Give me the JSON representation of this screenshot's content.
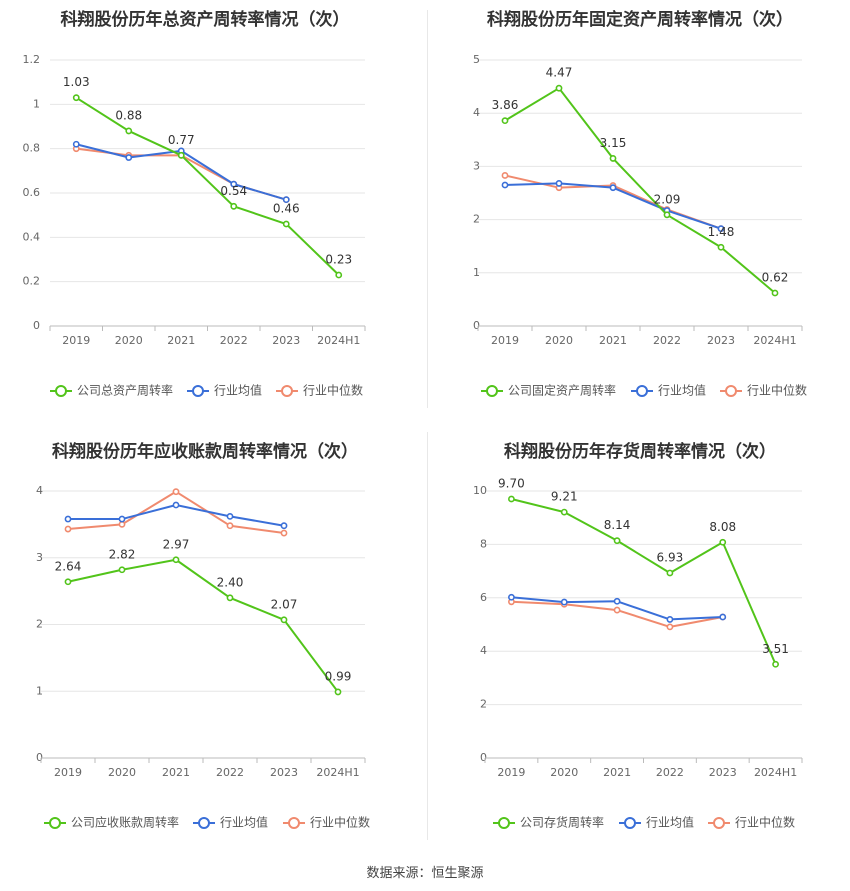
{
  "source_text": "数据来源：恒生聚源",
  "colors": {
    "company": "#52c41a",
    "average": "#3a6fd8",
    "median": "#f08a6e",
    "grid": "#e6e6e6",
    "axis": "#bbbbbb",
    "tick_text": "#666666",
    "label_text": "#333333",
    "title_text": "#333333"
  },
  "chart_data": [
    {
      "type": "line",
      "title": "科翔股份历年总资产周转率情况（次）",
      "categories": [
        "2019",
        "2020",
        "2021",
        "2022",
        "2023",
        "2024H1"
      ],
      "ylim": [
        0,
        1.2
      ],
      "yticks": [
        "0",
        "0.2",
        "0.4",
        "0.6",
        "0.8",
        "1",
        "1.2"
      ],
      "ytick_values": [
        0,
        0.2,
        0.4,
        0.6,
        0.8,
        1.0,
        1.2
      ],
      "series": [
        {
          "name": "公司总资产周转率",
          "role": "company",
          "values": [
            1.03,
            0.88,
            0.77,
            0.54,
            0.46,
            0.23
          ],
          "labels": [
            "1.03",
            "0.88",
            "0.77",
            "0.54",
            "0.46",
            "0.23"
          ]
        },
        {
          "name": "行业均值",
          "role": "average",
          "values": [
            0.82,
            0.76,
            0.79,
            0.64,
            0.57,
            null
          ]
        },
        {
          "name": "行业中位数",
          "role": "median",
          "values": [
            0.8,
            0.77,
            0.77,
            0.64,
            0.57,
            null
          ]
        }
      ]
    },
    {
      "type": "line",
      "title": "科翔股份历年固定资产周转率情况（次）",
      "categories": [
        "2019",
        "2020",
        "2021",
        "2022",
        "2023",
        "2024H1"
      ],
      "ylim": [
        0,
        5
      ],
      "yticks": [
        "0",
        "1",
        "2",
        "3",
        "4",
        "5"
      ],
      "ytick_values": [
        0,
        1,
        2,
        3,
        4,
        5
      ],
      "series": [
        {
          "name": "公司固定资产周转率",
          "role": "company",
          "values": [
            3.86,
            4.47,
            3.15,
            2.09,
            1.48,
            0.62
          ],
          "labels": [
            "3.86",
            "4.47",
            "3.15",
            "2.09",
            "1.48",
            "0.62"
          ]
        },
        {
          "name": "行业均值",
          "role": "average",
          "values": [
            2.65,
            2.68,
            2.6,
            2.17,
            1.83,
            null
          ]
        },
        {
          "name": "行业中位数",
          "role": "median",
          "values": [
            2.83,
            2.6,
            2.64,
            2.19,
            1.83,
            null
          ]
        }
      ]
    },
    {
      "type": "line",
      "title": "科翔股份历年应收账款周转率情况（次）",
      "categories": [
        "2019",
        "2020",
        "2021",
        "2022",
        "2023",
        "2024H1"
      ],
      "ylim": [
        0,
        4
      ],
      "yticks": [
        "0",
        "1",
        "2",
        "3",
        "4"
      ],
      "ytick_values": [
        0,
        1,
        2,
        3,
        4
      ],
      "series": [
        {
          "name": "公司应收账款周转率",
          "role": "company",
          "values": [
            2.64,
            2.82,
            2.97,
            2.4,
            2.07,
            0.99
          ],
          "labels": [
            "2.64",
            "2.82",
            "2.97",
            "2.40",
            "2.07",
            "0.99"
          ]
        },
        {
          "name": "行业均值",
          "role": "average",
          "values": [
            3.58,
            3.58,
            3.79,
            3.62,
            3.48,
            null
          ]
        },
        {
          "name": "行业中位数",
          "role": "median",
          "values": [
            3.43,
            3.5,
            3.99,
            3.48,
            3.37,
            null
          ]
        }
      ]
    },
    {
      "type": "line",
      "title": "科翔股份历年存货周转率情况（次）",
      "categories": [
        "2019",
        "2020",
        "2021",
        "2022",
        "2023",
        "2024H1"
      ],
      "ylim": [
        0,
        10
      ],
      "yticks": [
        "0",
        "2",
        "4",
        "6",
        "8",
        "10"
      ],
      "ytick_values": [
        0,
        2,
        4,
        6,
        8,
        10
      ],
      "series": [
        {
          "name": "公司存货周转率",
          "role": "company",
          "values": [
            9.7,
            9.21,
            8.14,
            6.93,
            8.08,
            3.51
          ],
          "labels": [
            "9.70",
            "9.21",
            "8.14",
            "6.93",
            "8.08",
            "3.51"
          ]
        },
        {
          "name": "行业均值",
          "role": "average",
          "values": [
            6.02,
            5.84,
            5.87,
            5.19,
            5.28,
            null
          ]
        },
        {
          "name": "行业中位数",
          "role": "median",
          "values": [
            5.85,
            5.76,
            5.54,
            4.91,
            5.28,
            null
          ]
        }
      ]
    }
  ]
}
